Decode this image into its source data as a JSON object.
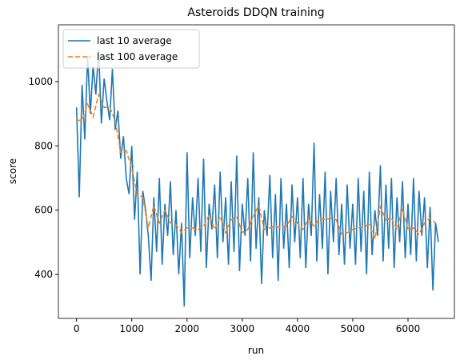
{
  "chart_data": {
    "type": "line",
    "title": "Asteroids DDQN training",
    "xlabel": "run",
    "ylabel": "score",
    "xlim": [
      -328,
      6840
    ],
    "ylim": [
      263,
      1177
    ],
    "xticks": [
      0,
      1000,
      2000,
      3000,
      4000,
      5000,
      6000
    ],
    "yticks": [
      400,
      600,
      800,
      1000
    ],
    "legend": "upper left",
    "series": [
      {
        "name": "last 10 average",
        "color": "#1f77b4",
        "linestyle": "solid",
        "x": [
          0,
          50,
          100,
          150,
          200,
          250,
          300,
          350,
          400,
          450,
          500,
          550,
          600,
          650,
          700,
          750,
          800,
          850,
          900,
          950,
          1000,
          1050,
          1100,
          1150,
          1200,
          1250,
          1300,
          1350,
          1400,
          1450,
          1500,
          1550,
          1600,
          1650,
          1700,
          1750,
          1800,
          1850,
          1900,
          1950,
          2000,
          2050,
          2100,
          2150,
          2200,
          2250,
          2300,
          2350,
          2400,
          2450,
          2500,
          2550,
          2600,
          2650,
          2700,
          2750,
          2800,
          2850,
          2900,
          2950,
          3000,
          3050,
          3100,
          3150,
          3200,
          3250,
          3300,
          3350,
          3400,
          3450,
          3500,
          3550,
          3600,
          3650,
          3700,
          3750,
          3800,
          3850,
          3900,
          3950,
          4000,
          4050,
          4100,
          4150,
          4200,
          4250,
          4300,
          4350,
          4400,
          4450,
          4500,
          4550,
          4600,
          4650,
          4700,
          4750,
          4800,
          4850,
          4900,
          4950,
          5000,
          5050,
          5100,
          5150,
          5200,
          5250,
          5300,
          5350,
          5400,
          5450,
          5500,
          5550,
          5600,
          5650,
          5700,
          5750,
          5800,
          5850,
          5900,
          5950,
          6000,
          6050,
          6100,
          6150,
          6200,
          6250,
          6300,
          6350,
          6400,
          6450,
          6500,
          6550
        ],
        "values": [
          920,
          640,
          990,
          820,
          1080,
          900,
          1050,
          960,
          1100,
          870,
          1010,
          940,
          880,
          1040,
          850,
          910,
          760,
          830,
          700,
          650,
          800,
          570,
          720,
          400,
          660,
          600,
          520,
          380,
          640,
          470,
          700,
          430,
          620,
          520,
          690,
          460,
          600,
          400,
          560,
          300,
          780,
          450,
          640,
          520,
          700,
          470,
          760,
          420,
          620,
          540,
          680,
          450,
          720,
          500,
          640,
          430,
          690,
          470,
          770,
          410,
          620,
          520,
          700,
          440,
          780,
          480,
          640,
          370,
          600,
          520,
          710,
          450,
          650,
          380,
          700,
          480,
          620,
          420,
          680,
          500,
          640,
          450,
          700,
          420,
          620,
          520,
          810,
          440,
          650,
          480,
          720,
          400,
          660,
          500,
          700,
          460,
          620,
          430,
          680,
          480,
          620,
          430,
          700,
          470,
          660,
          400,
          720,
          460,
          600,
          520,
          740,
          440,
          680,
          480,
          700,
          420,
          640,
          500,
          690,
          450,
          620,
          460,
          700,
          440,
          660,
          520,
          640,
          420,
          610,
          350,
          560,
          500
        ]
      },
      {
        "name": "last 100 average",
        "color": "#ff7f0e",
        "linestyle": "dashed",
        "x": [
          0,
          100,
          200,
          300,
          400,
          500,
          600,
          700,
          800,
          900,
          1000,
          1100,
          1200,
          1300,
          1400,
          1500,
          1600,
          1700,
          1800,
          1900,
          2000,
          2100,
          2200,
          2300,
          2400,
          2500,
          2600,
          2700,
          2800,
          2900,
          3000,
          3100,
          3200,
          3300,
          3400,
          3500,
          3600,
          3700,
          3800,
          3900,
          4000,
          4100,
          4200,
          4300,
          4400,
          4500,
          4600,
          4700,
          4800,
          4900,
          5000,
          5100,
          5200,
          5300,
          5400,
          5500,
          5600,
          5700,
          5800,
          5900,
          6000,
          6100,
          6200,
          6300,
          6400,
          6500
        ],
        "values": [
          880,
          880,
          930,
          890,
          960,
          920,
          920,
          880,
          780,
          785,
          730,
          650,
          640,
          545,
          615,
          560,
          600,
          560,
          555,
          530,
          545,
          545,
          540,
          550,
          585,
          540,
          580,
          530,
          570,
          580,
          530,
          540,
          580,
          615,
          540,
          545,
          550,
          545,
          550,
          580,
          560,
          540,
          575,
          550,
          575,
          570,
          575,
          570,
          525,
          530,
          540,
          545,
          550,
          555,
          510,
          610,
          570,
          575,
          540,
          605,
          540,
          545,
          525,
          560,
          575,
          560
        ]
      }
    ]
  }
}
